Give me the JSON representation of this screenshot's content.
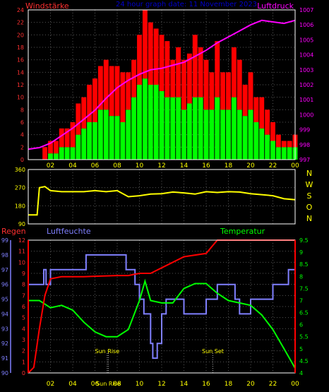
{
  "header": {
    "left_title": "Windstärke",
    "center_title": "24 hour graph date: 11 November 2023",
    "right_title": "Luftdruck"
  },
  "colors": {
    "background": "#000000",
    "wind_gust": "#ff0000",
    "wind_avg": "#00ff00",
    "pressure": "#ff00ff",
    "direction": "#ffff00",
    "rain": "#ff0000",
    "humidity": "#8080ff",
    "temperature": "#00ff00",
    "grid": "#555555",
    "left_axis_label": "#ff3030",
    "pressure_axis_label": "#ff00ff",
    "center_title": "#0000cc",
    "humidity_label": "#8080ff",
    "temperature_label": "#00ff00",
    "direction_labels": "#ffff00",
    "annotations": "#ffff00"
  },
  "x_axis": {
    "tick_labels": [
      "02",
      "04",
      "06",
      "08",
      "10",
      "12",
      "14",
      "16",
      "18",
      "20",
      "22",
      "00"
    ],
    "tick_hours": [
      2,
      4,
      6,
      8,
      10,
      12,
      14,
      16,
      18,
      20,
      22,
      24
    ],
    "range_hours": [
      0,
      24
    ]
  },
  "chart_data": [
    {
      "type": "bar",
      "ylim_wind": [
        0,
        24
      ],
      "wind_ticks": [
        0,
        2,
        4,
        6,
        8,
        10,
        12,
        14,
        16,
        18,
        20,
        22,
        24
      ],
      "ylim_pressure": [
        997,
        1007
      ],
      "pressure_ticks": [
        997,
        998,
        999,
        1000,
        1001,
        1002,
        1003,
        1004,
        1005,
        1006,
        1007
      ],
      "wind_x": [
        0,
        0.5,
        1,
        1.5,
        2,
        2.5,
        3,
        3.5,
        4,
        4.5,
        5,
        5.5,
        6,
        6.5,
        7,
        7.5,
        8,
        8.5,
        9,
        9.5,
        10,
        10.5,
        11,
        11.5,
        12,
        12.5,
        13,
        13.5,
        14,
        14.5,
        15,
        15.5,
        16,
        16.5,
        17,
        17.5,
        18,
        18.5,
        19,
        19.5,
        20,
        20.5,
        21,
        21.5,
        22,
        22.5,
        23,
        23.5,
        24
      ],
      "gust_values": [
        0,
        0,
        0,
        2,
        3,
        3,
        5,
        5,
        6,
        9,
        10,
        12,
        13,
        15,
        16,
        15,
        15,
        14,
        14,
        16,
        20,
        24,
        22,
        21,
        20,
        19,
        16,
        18,
        16,
        17,
        20,
        18,
        16,
        14,
        19,
        14,
        14,
        18,
        16,
        12,
        14,
        10,
        10,
        8,
        6,
        4,
        3,
        3,
        4
      ],
      "avg_values": [
        0,
        0,
        0,
        0,
        1,
        1,
        2,
        2,
        2,
        4,
        5,
        6,
        6,
        8,
        8,
        7,
        7,
        6,
        8,
        10,
        12,
        13,
        12,
        12,
        11,
        10,
        10,
        10,
        8,
        9,
        10,
        10,
        8,
        8,
        10,
        8,
        8,
        10,
        8,
        7,
        8,
        6,
        5,
        4,
        3,
        2,
        2,
        2,
        2
      ],
      "pressure_x": [
        0,
        1,
        2,
        3,
        4,
        5,
        6,
        7,
        8,
        9,
        10,
        11,
        12,
        13,
        14,
        15,
        16,
        17,
        18,
        19,
        20,
        21,
        22,
        23,
        24
      ],
      "pressure_values": [
        997.7,
        997.8,
        998.1,
        998.6,
        999.1,
        999.7,
        1000.3,
        1001.1,
        1001.8,
        1002.3,
        1002.7,
        1003.0,
        1003.1,
        1003.3,
        1003.5,
        1003.9,
        1004.3,
        1004.8,
        1005.2,
        1005.6,
        1006.0,
        1006.3,
        1006.2,
        1006.1,
        1006.3
      ]
    },
    {
      "type": "line",
      "ylim": [
        90,
        360
      ],
      "y_ticks": [
        90,
        180,
        270,
        360
      ],
      "right_labels": [
        "N",
        "W",
        "S",
        "O",
        "N"
      ],
      "x": [
        0,
        0.8,
        1,
        1.5,
        2,
        3,
        4,
        5,
        6,
        7,
        8,
        9,
        10,
        11,
        12,
        13,
        14,
        15,
        16,
        17,
        18,
        19,
        20,
        21,
        22,
        23,
        24
      ],
      "values": [
        135,
        135,
        270,
        275,
        255,
        250,
        250,
        250,
        255,
        250,
        255,
        225,
        230,
        238,
        240,
        248,
        244,
        238,
        250,
        246,
        250,
        248,
        240,
        235,
        230,
        215,
        210
      ]
    },
    {
      "type": "line",
      "rain_label": "Regen",
      "humidity_label": "Luftfeuchte",
      "temperature_label": "Temperatur",
      "ylim_rain": [
        0,
        12
      ],
      "rain_ticks": [
        0,
        1,
        2,
        3,
        4,
        5,
        6,
        7,
        8,
        9,
        10,
        11,
        12
      ],
      "ylim_humidity": [
        90,
        99
      ],
      "humidity_ticks": [
        90,
        91,
        92,
        93,
        94,
        95,
        96,
        97,
        98,
        99
      ],
      "ylim_temperature": [
        4,
        9.5
      ],
      "temperature_ticks": [
        4,
        4.5,
        5,
        5.5,
        6,
        6.5,
        7,
        7.5,
        8,
        8.5,
        9,
        9.5
      ],
      "rain_x": [
        0,
        0.5,
        1,
        1.5,
        2,
        3,
        5,
        8,
        9,
        10,
        11,
        12,
        14,
        16,
        17,
        18,
        20,
        22,
        24
      ],
      "rain_values": [
        0,
        0.5,
        4,
        7,
        8.5,
        8.7,
        8.7,
        8.8,
        8.8,
        9,
        9,
        9.5,
        10.5,
        10.8,
        12,
        12,
        12,
        12,
        12
      ],
      "humidity_x": [
        0,
        1,
        1.4,
        1.6,
        2,
        2.2,
        5,
        5.2,
        8.8,
        9.6,
        10,
        10.4,
        11,
        11.2,
        11.6,
        12,
        12.4,
        13,
        14,
        16,
        17,
        18,
        18.6,
        19,
        20,
        21,
        22,
        23,
        23.4,
        24
      ],
      "humidity_values": [
        96,
        96,
        97,
        96,
        97,
        97,
        97,
        98,
        97,
        96,
        95,
        94,
        92,
        91,
        92,
        94,
        95,
        95,
        94,
        95,
        96,
        96,
        95,
        94,
        95,
        95,
        96,
        96,
        97,
        97
      ],
      "temp_x": [
        0,
        1,
        2,
        3,
        4,
        5,
        6,
        7,
        8,
        9,
        10,
        10.5,
        11,
        12,
        13,
        14,
        15,
        16,
        17,
        18,
        19,
        20,
        21,
        22,
        23,
        24
      ],
      "temp_values": [
        7,
        7,
        6.7,
        6.8,
        6.6,
        6.1,
        5.7,
        5.5,
        5.5,
        5.8,
        7,
        7.8,
        7.0,
        6.9,
        6.9,
        7.5,
        7.7,
        7.7,
        7.3,
        7.0,
        6.9,
        6.8,
        6.4,
        5.8,
        5.0,
        4.2
      ],
      "annotations": [
        {
          "label": "Sun Rise",
          "hour": 7.1
        },
        {
          "label": "Sun Set",
          "hour": 16.6
        },
        {
          "label": "Sun Rise",
          "hour": 7.2
        }
      ]
    }
  ]
}
